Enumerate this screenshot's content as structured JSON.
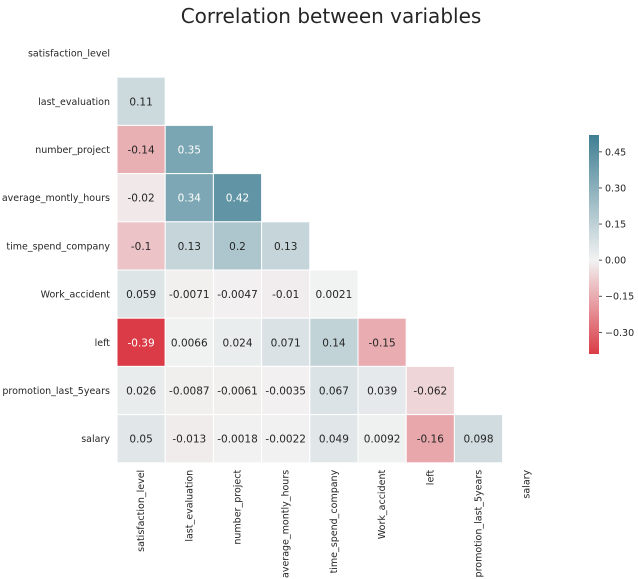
{
  "chart_data": {
    "type": "heatmap",
    "title": "Correlation between variables",
    "variables": [
      "satisfaction_level",
      "last_evaluation",
      "number_project",
      "average_montly_hours",
      "time_spend_company",
      "Work_accident",
      "left",
      "promotion_last_5years",
      "salary"
    ],
    "mask": "upper-triangle-and-diagonal",
    "matrix": [
      [
        null,
        null,
        null,
        null,
        null,
        null,
        null,
        null,
        null
      ],
      [
        0.11,
        null,
        null,
        null,
        null,
        null,
        null,
        null,
        null
      ],
      [
        -0.14,
        0.35,
        null,
        null,
        null,
        null,
        null,
        null,
        null
      ],
      [
        -0.02,
        0.34,
        0.42,
        null,
        null,
        null,
        null,
        null,
        null
      ],
      [
        -0.1,
        0.13,
        0.2,
        0.13,
        null,
        null,
        null,
        null,
        null
      ],
      [
        0.059,
        -0.0071,
        -0.0047,
        -0.01,
        0.0021,
        null,
        null,
        null,
        null
      ],
      [
        -0.39,
        0.0066,
        0.024,
        0.071,
        0.14,
        -0.15,
        null,
        null,
        null
      ],
      [
        0.026,
        -0.0087,
        -0.0061,
        -0.0035,
        0.067,
        0.039,
        -0.062,
        null,
        null
      ],
      [
        0.05,
        -0.013,
        -0.0018,
        -0.0022,
        0.049,
        0.0092,
        -0.16,
        0.098,
        null
      ]
    ],
    "labels": [
      [
        null,
        null,
        null,
        null,
        null,
        null,
        null,
        null,
        null
      ],
      [
        "0.11",
        null,
        null,
        null,
        null,
        null,
        null,
        null,
        null
      ],
      [
        "-0.14",
        "0.35",
        null,
        null,
        null,
        null,
        null,
        null,
        null
      ],
      [
        "-0.02",
        "0.34",
        "0.42",
        null,
        null,
        null,
        null,
        null,
        null
      ],
      [
        "-0.1",
        "0.13",
        "0.2",
        "0.13",
        null,
        null,
        null,
        null,
        null
      ],
      [
        "0.059",
        "-0.0071",
        "-0.0047",
        "-0.01",
        "0.0021",
        null,
        null,
        null,
        null
      ],
      [
        "-0.39",
        "0.0066",
        "0.024",
        "0.071",
        "0.14",
        "-0.15",
        null,
        null,
        null
      ],
      [
        "0.026",
        "-0.0087",
        "-0.0061",
        "-0.0035",
        "0.067",
        "0.039",
        "-0.062",
        null,
        null
      ],
      [
        "0.05",
        "-0.013",
        "-0.0018",
        "-0.0022",
        "0.049",
        "0.0092",
        "-0.16",
        "0.098",
        null
      ]
    ],
    "colorbar": {
      "vmin": -0.39,
      "vmax": 0.52,
      "ticks": [
        0.45,
        0.3,
        0.15,
        0.0,
        -0.15,
        -0.3
      ],
      "tick_labels": [
        "0.45",
        "0.30",
        "0.15",
        "0.00",
        "−0.15",
        "−0.30"
      ],
      "position": "right"
    },
    "colors": {
      "negative": "#da3b46",
      "center": "#f2f2f2",
      "positive": "#3f7f93",
      "text_dark": "#262626",
      "text_light": "#ffffff",
      "grid_line": "#ffffff"
    }
  }
}
